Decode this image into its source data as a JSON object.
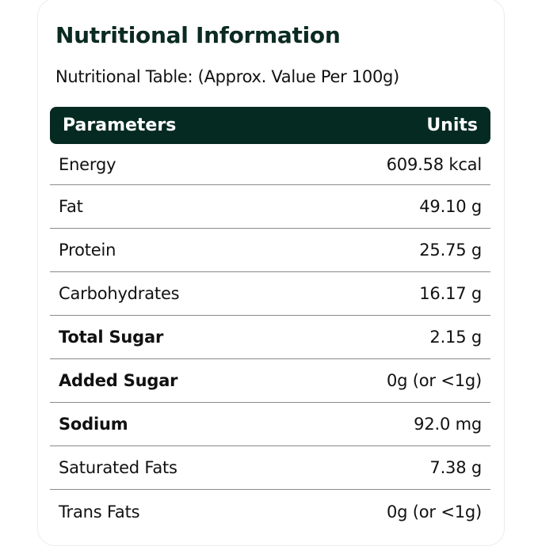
{
  "title": "Nutritional Information",
  "subtitle": "Nutritional Table: (Approx. Value Per 100g)",
  "header": {
    "parameters": "Parameters",
    "units": "Units"
  },
  "colors": {
    "header_bg": "#052a22",
    "title": "#0b2a22"
  },
  "rows": [
    {
      "param": "Energy",
      "value": "609.58 kcal",
      "bold": false
    },
    {
      "param": "Fat",
      "value": "49.10 g",
      "bold": false
    },
    {
      "param": "Protein",
      "value": "25.75 g",
      "bold": false
    },
    {
      "param": "Carbohydrates",
      "value": "16.17 g",
      "bold": false
    },
    {
      "param": "Total Sugar",
      "value": "2.15 g",
      "bold": true
    },
    {
      "param": "Added Sugar",
      "value": "0g (or <1g)",
      "bold": true
    },
    {
      "param": "Sodium",
      "value": "92.0 mg",
      "bold": true
    },
    {
      "param": "Saturated Fats",
      "value": "7.38 g",
      "bold": false
    },
    {
      "param": "Trans Fats",
      "value": "0g (or <1g)",
      "bold": false
    }
  ]
}
